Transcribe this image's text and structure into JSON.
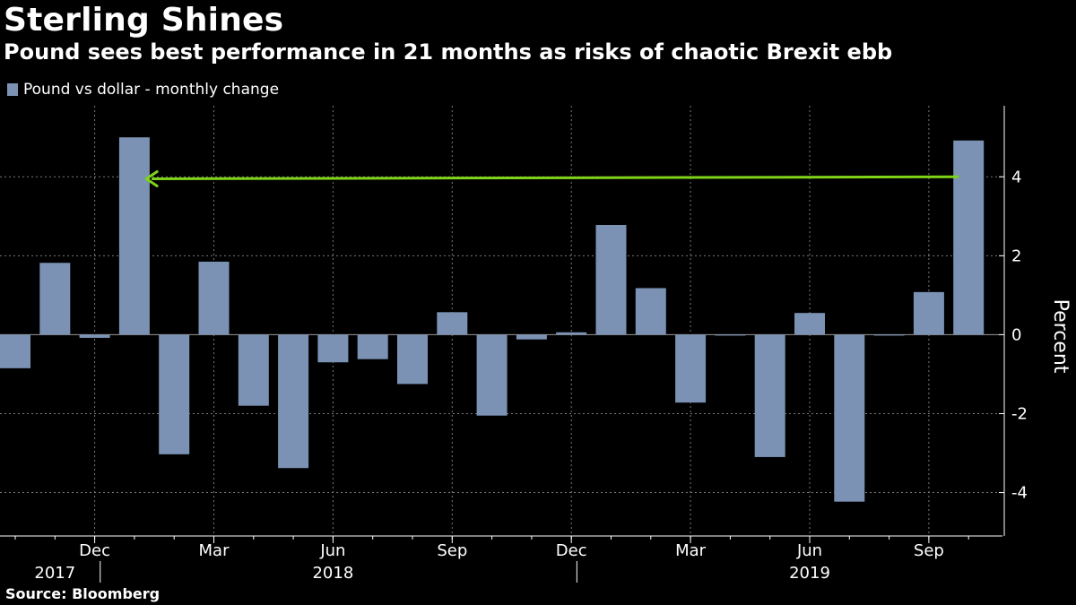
{
  "title": "Sterling Shines",
  "subtitle": "Pound sees best performance in 21 months as risks of chaotic Brexit ebb",
  "source": "Source: Bloomberg",
  "colors": {
    "bar": "#7b92b4",
    "arrow": "#7fd318",
    "grid": "#7a7a7a",
    "background": "#000000"
  },
  "chart_data": {
    "type": "bar",
    "title": "Sterling Shines",
    "legend": [
      "Pound vs dollar - monthly change"
    ],
    "ylabel": "Percent",
    "xlabel": "",
    "ylim": [
      -5.1,
      5.8
    ],
    "yticks": [
      -4,
      -2,
      0,
      2,
      4
    ],
    "categories": [
      "Oct 2017",
      "Nov 2017",
      "Dec 2017",
      "Jan 2018",
      "Feb 2018",
      "Mar 2018",
      "Apr 2018",
      "May 2018",
      "Jun 2018",
      "Jul 2018",
      "Aug 2018",
      "Sep 2018",
      "Oct 2018",
      "Nov 2018",
      "Dec 2018",
      "Jan 2019",
      "Feb 2019",
      "Mar 2019",
      "Apr 2019",
      "May 2019",
      "Jun 2019",
      "Jul 2019",
      "Aug 2019",
      "Sep 2019",
      "Oct 2019"
    ],
    "values": [
      -0.85,
      1.82,
      -0.08,
      5.0,
      -3.03,
      1.85,
      -1.8,
      -3.38,
      -0.7,
      -0.62,
      -1.25,
      0.57,
      -2.05,
      -0.12,
      0.06,
      2.78,
      1.18,
      -1.72,
      -0.01,
      -3.1,
      0.55,
      -4.23,
      -0.01,
      1.08,
      4.92
    ],
    "month_ticks": [
      {
        "label": "Dec",
        "index": 2
      },
      {
        "label": "Mar",
        "index": 5
      },
      {
        "label": "Jun",
        "index": 8
      },
      {
        "label": "Sep",
        "index": 11
      },
      {
        "label": "Dec",
        "index": 14
      },
      {
        "label": "Mar",
        "index": 17
      },
      {
        "label": "Jun",
        "index": 20
      },
      {
        "label": "Sep",
        "index": 23
      }
    ],
    "year_labels": [
      {
        "label": "2017",
        "index": 1
      },
      {
        "label": "2018",
        "index": 8
      },
      {
        "label": "2019",
        "index": 20
      }
    ],
    "year_separators": [
      2.5,
      14.5
    ],
    "annotation": {
      "type": "arrow",
      "description": "Arrow pointing left from latest bar to prior peak",
      "from": {
        "index": 23.75,
        "value": 4.0
      },
      "to": {
        "index": 3.3,
        "value": 3.95
      }
    }
  }
}
